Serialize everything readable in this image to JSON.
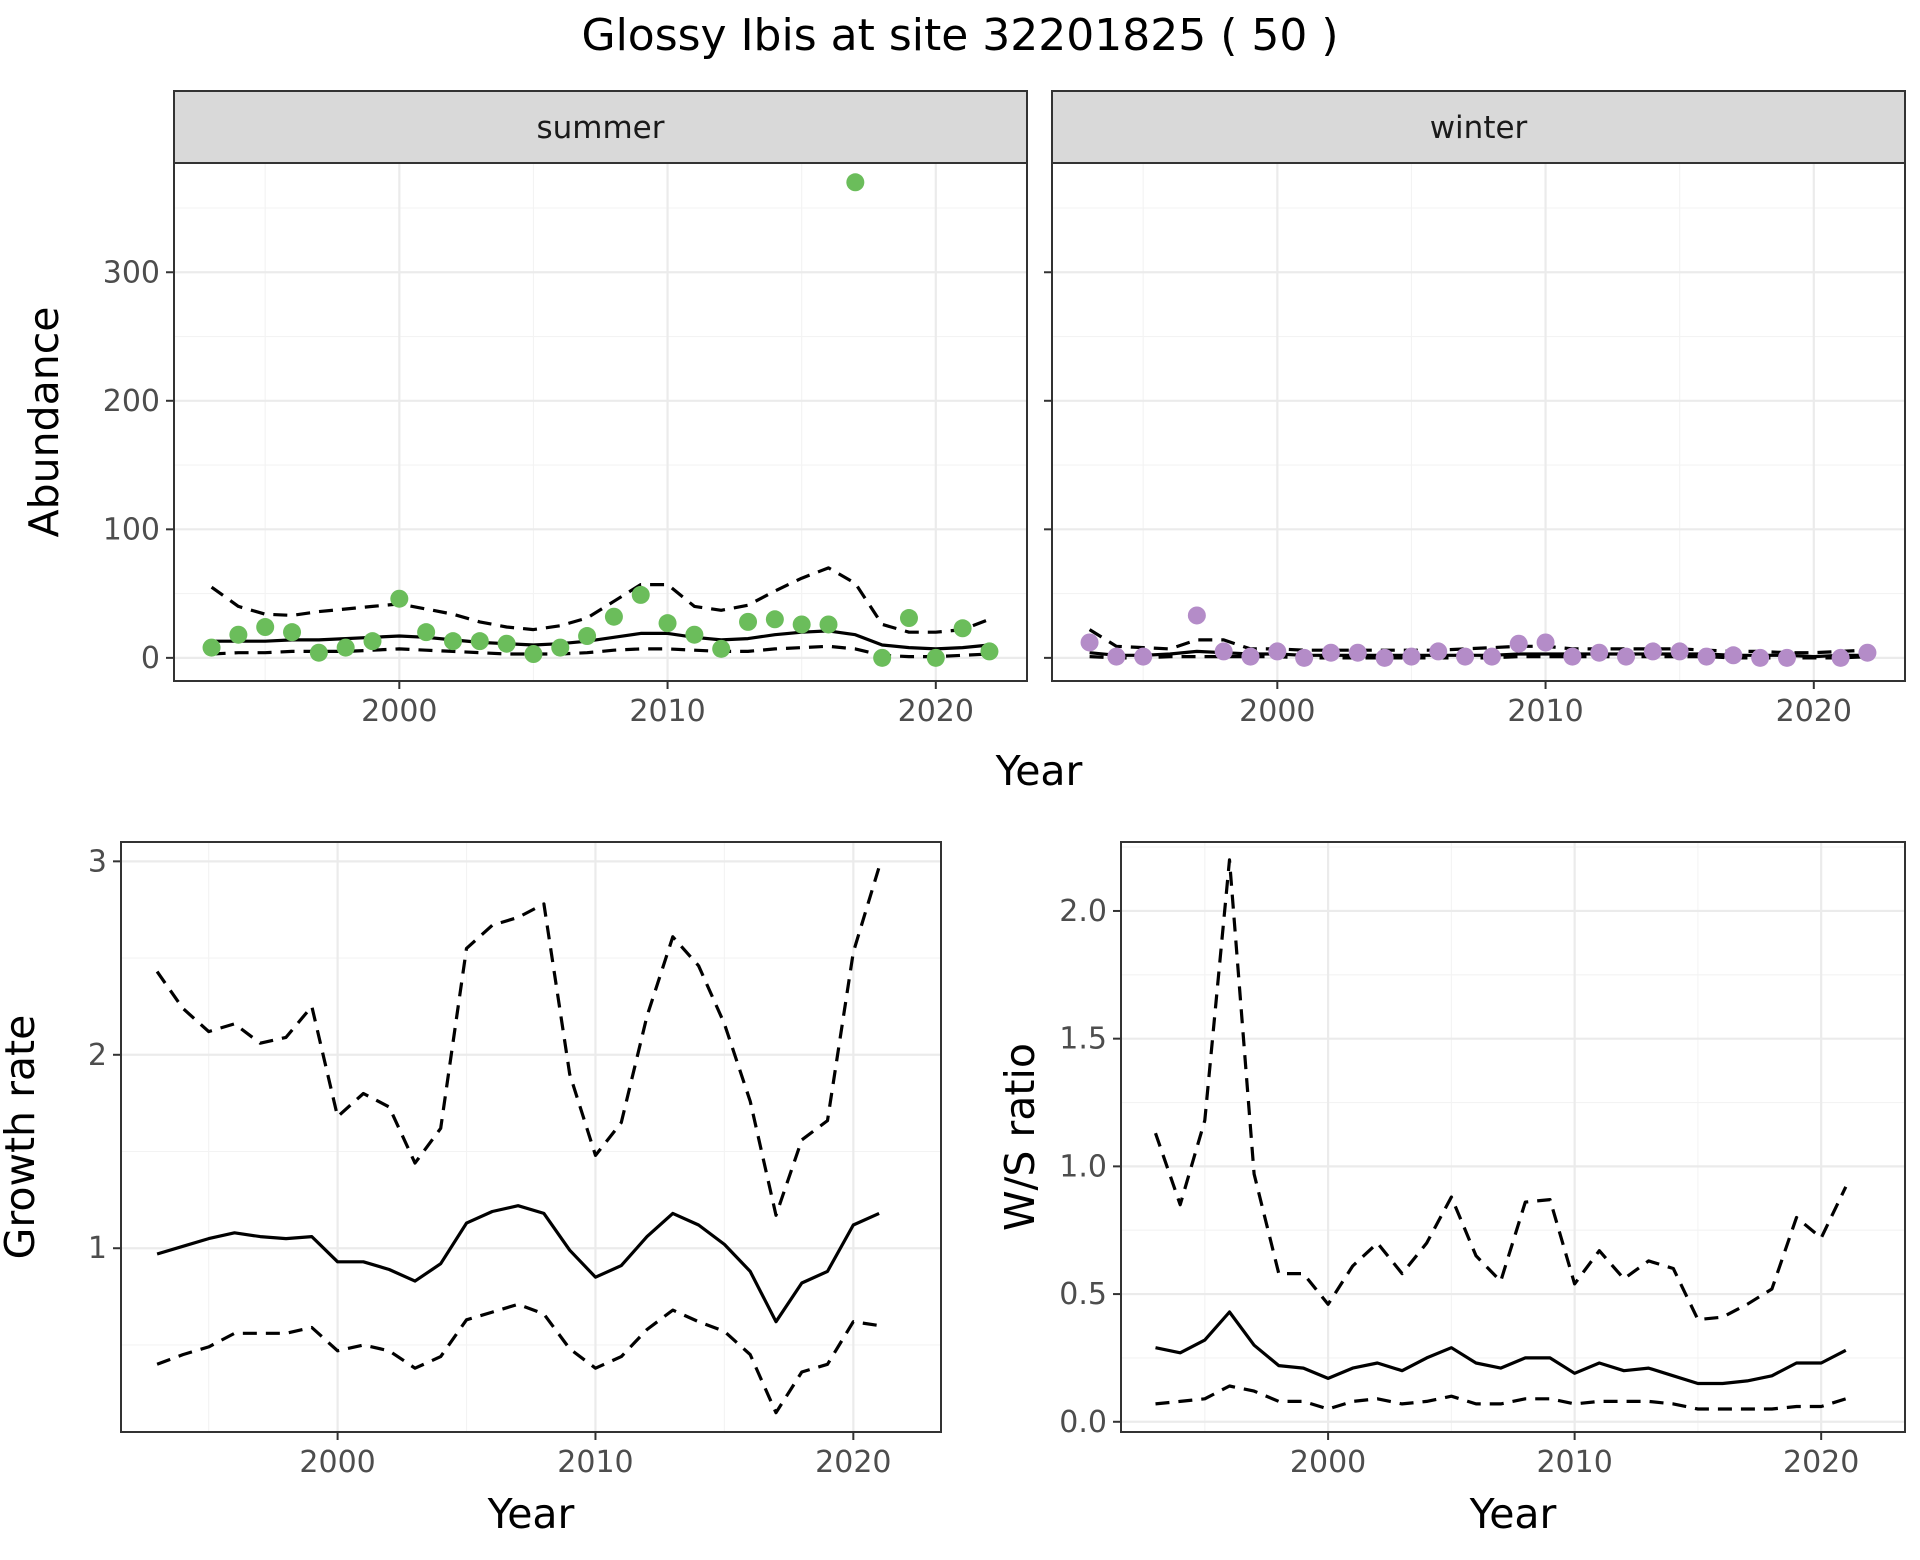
{
  "figure": {
    "title": "Glossy Ibis at site 32201825 ( 50 )"
  },
  "chart_data": [
    {
      "type": "scatter",
      "facet": "summer",
      "xlabel": "Year",
      "ylabel": "Abundance",
      "xlim": [
        1991.6,
        2023.4
      ],
      "ylim": [
        -18,
        385
      ],
      "x_ticks": [
        2000,
        2010,
        2020
      ],
      "y_ticks": [
        0,
        100,
        200,
        300
      ],
      "grid": true,
      "point_color": "#6bbd5b",
      "points": {
        "x": [
          1993,
          1994,
          1995,
          1996,
          1997,
          1998,
          1999,
          2000,
          2001,
          2002,
          2003,
          2004,
          2005,
          2006,
          2007,
          2008,
          2009,
          2010,
          2011,
          2012,
          2013,
          2014,
          2015,
          2016,
          2017,
          2018,
          2019,
          2020,
          2021,
          2022
        ],
        "y": [
          8,
          18,
          24,
          20,
          4,
          8,
          13,
          46,
          20,
          13,
          13,
          11,
          3,
          8,
          17,
          32,
          49,
          27,
          18,
          7,
          28,
          30,
          26,
          26,
          370,
          0,
          31,
          0,
          23,
          5
        ]
      },
      "fit": {
        "x": [
          1993,
          1994,
          1995,
          1996,
          1997,
          1998,
          1999,
          2000,
          2001,
          2002,
          2003,
          2004,
          2005,
          2006,
          2007,
          2008,
          2009,
          2010,
          2011,
          2012,
          2013,
          2014,
          2015,
          2016,
          2017,
          2018,
          2019,
          2020,
          2021,
          2022
        ],
        "y": [
          13,
          13,
          13,
          14,
          14,
          15,
          16,
          17,
          16,
          14,
          12,
          11,
          10,
          11,
          13,
          16,
          19,
          19,
          16,
          14,
          15,
          18,
          20,
          21,
          18,
          10,
          8,
          7,
          8,
          10
        ]
      },
      "lower": {
        "x": [
          1993,
          1994,
          1995,
          1996,
          1997,
          1998,
          1999,
          2000,
          2001,
          2002,
          2003,
          2004,
          2005,
          2006,
          2007,
          2008,
          2009,
          2010,
          2011,
          2012,
          2013,
          2014,
          2015,
          2016,
          2017,
          2018,
          2019,
          2020,
          2021,
          2022
        ],
        "y": [
          3,
          4,
          4,
          5,
          5,
          5,
          6,
          7,
          6,
          5,
          4,
          3,
          3,
          3,
          4,
          6,
          7,
          7,
          6,
          5,
          5,
          7,
          8,
          9,
          7,
          2,
          1,
          1,
          2,
          3
        ]
      },
      "upper": {
        "x": [
          1993,
          1994,
          1995,
          1996,
          1997,
          1998,
          1999,
          2000,
          2001,
          2002,
          2003,
          2004,
          2005,
          2006,
          2007,
          2008,
          2009,
          2010,
          2011,
          2012,
          2013,
          2014,
          2015,
          2016,
          2017,
          2018,
          2019,
          2020,
          2021,
          2022
        ],
        "y": [
          55,
          40,
          34,
          33,
          36,
          38,
          40,
          42,
          38,
          34,
          28,
          24,
          22,
          25,
          31,
          44,
          57,
          57,
          40,
          37,
          41,
          52,
          62,
          70,
          58,
          26,
          20,
          20,
          22,
          30
        ]
      }
    },
    {
      "type": "scatter",
      "facet": "winter",
      "xlabel": "Year",
      "ylabel": "Abundance",
      "xlim": [
        1991.6,
        2023.4
      ],
      "ylim": [
        -18,
        385
      ],
      "x_ticks": [
        2000,
        2010,
        2020
      ],
      "y_ticks": [
        0,
        100,
        200,
        300
      ],
      "grid": true,
      "point_color": "#b48cc8",
      "points": {
        "x": [
          1993,
          1994,
          1995,
          1996,
          1997,
          1998,
          1999,
          2000,
          2001,
          2002,
          2003,
          2004,
          2005,
          2006,
          2007,
          2008,
          2009,
          2010,
          2011,
          2012,
          2013,
          2014,
          2015,
          2016,
          2017,
          2018,
          2019,
          2020,
          2021,
          2022
        ],
        "y": [
          12,
          1,
          1,
          null,
          33,
          5,
          1,
          5,
          0,
          4,
          4,
          0,
          1,
          5,
          1,
          1,
          11,
          12,
          1,
          4,
          1,
          5,
          5,
          1,
          2,
          0,
          0,
          null,
          0,
          4
        ]
      },
      "fit": {
        "x": [
          1993,
          1994,
          1995,
          1996,
          1997,
          1998,
          1999,
          2000,
          2001,
          2002,
          2003,
          2004,
          2005,
          2006,
          2007,
          2008,
          2009,
          2010,
          2011,
          2012,
          2013,
          2014,
          2015,
          2016,
          2017,
          2018,
          2019,
          2020,
          2021,
          2022
        ],
        "y": [
          4,
          2,
          2,
          3,
          5,
          4,
          3,
          3,
          2,
          2,
          2,
          2,
          2,
          2,
          2,
          2,
          3,
          3,
          3,
          3,
          3,
          3,
          3,
          3,
          2,
          2,
          2,
          1,
          2,
          2
        ]
      },
      "lower": {
        "x": [
          1993,
          1994,
          1995,
          1996,
          1997,
          1998,
          1999,
          2000,
          2001,
          2002,
          2003,
          2004,
          2005,
          2006,
          2007,
          2008,
          2009,
          2010,
          2011,
          2012,
          2013,
          2014,
          2015,
          2016,
          2017,
          2018,
          2019,
          2020,
          2021,
          2022
        ],
        "y": [
          1,
          0,
          0,
          1,
          1,
          1,
          1,
          1,
          0,
          0,
          0,
          0,
          0,
          0,
          0,
          0,
          1,
          1,
          1,
          1,
          1,
          1,
          1,
          1,
          0,
          0,
          0,
          0,
          0,
          1
        ]
      },
      "upper": {
        "x": [
          1993,
          1994,
          1995,
          1996,
          1997,
          1998,
          1999,
          2000,
          2001,
          2002,
          2003,
          2004,
          2005,
          2006,
          2007,
          2008,
          2009,
          2010,
          2011,
          2012,
          2013,
          2014,
          2015,
          2016,
          2017,
          2018,
          2019,
          2020,
          2021,
          2022
        ],
        "y": [
          22,
          9,
          8,
          7,
          14,
          14,
          7,
          7,
          6,
          6,
          6,
          6,
          6,
          6,
          7,
          8,
          9,
          9,
          7,
          7,
          7,
          7,
          7,
          6,
          5,
          5,
          4,
          4,
          5,
          6
        ]
      }
    },
    {
      "type": "line",
      "xlabel": "Year",
      "ylabel": "Growth rate",
      "xlim": [
        1991.6,
        2023.4
      ],
      "ylim": [
        0.05,
        3.1
      ],
      "x_ticks": [
        2000,
        2010,
        2020
      ],
      "y_ticks": [
        1,
        2,
        3
      ],
      "grid": true,
      "fit": {
        "x": [
          1993,
          1994,
          1995,
          1996,
          1997,
          1998,
          1999,
          2000,
          2001,
          2002,
          2003,
          2004,
          2005,
          2006,
          2007,
          2008,
          2009,
          2010,
          2011,
          2012,
          2013,
          2014,
          2015,
          2016,
          2017,
          2018,
          2019,
          2020,
          2021
        ],
        "y": [
          0.97,
          1.01,
          1.05,
          1.08,
          1.06,
          1.05,
          1.06,
          0.93,
          0.93,
          0.89,
          0.83,
          0.92,
          1.13,
          1.19,
          1.22,
          1.18,
          0.99,
          0.85,
          0.91,
          1.06,
          1.18,
          1.12,
          1.02,
          0.88,
          0.62,
          0.82,
          0.88,
          1.12,
          1.18
        ]
      },
      "lower": {
        "x": [
          1993,
          1994,
          1995,
          1996,
          1997,
          1998,
          1999,
          2000,
          2001,
          2002,
          2003,
          2004,
          2005,
          2006,
          2007,
          2008,
          2009,
          2010,
          2011,
          2012,
          2013,
          2014,
          2015,
          2016,
          2017,
          2018,
          2019,
          2020,
          2021
        ],
        "y": [
          0.4,
          0.45,
          0.49,
          0.56,
          0.56,
          0.56,
          0.59,
          0.47,
          0.5,
          0.47,
          0.38,
          0.44,
          0.63,
          0.67,
          0.71,
          0.66,
          0.48,
          0.38,
          0.44,
          0.58,
          0.68,
          0.62,
          0.57,
          0.45,
          0.15,
          0.36,
          0.4,
          0.62,
          0.6
        ]
      },
      "upper": {
        "x": [
          1993,
          1994,
          1995,
          1996,
          1997,
          1998,
          1999,
          2000,
          2001,
          2002,
          2003,
          2004,
          2005,
          2006,
          2007,
          2008,
          2009,
          2010,
          2011,
          2012,
          2013,
          2014,
          2015,
          2016,
          2017,
          2018,
          2019,
          2020,
          2021
        ],
        "y": [
          2.43,
          2.24,
          2.12,
          2.16,
          2.06,
          2.09,
          2.25,
          1.68,
          1.8,
          1.73,
          1.44,
          1.62,
          2.55,
          2.67,
          2.71,
          2.78,
          1.9,
          1.48,
          1.65,
          2.2,
          2.61,
          2.46,
          2.16,
          1.76,
          1.17,
          1.56,
          1.66,
          2.53,
          2.97
        ]
      }
    },
    {
      "type": "line",
      "xlabel": "Year",
      "ylabel": "W/S ratio",
      "xlim": [
        1991.6,
        2023.4
      ],
      "ylim": [
        -0.04,
        2.27
      ],
      "x_ticks": [
        2000,
        2010,
        2020
      ],
      "y_ticks": [
        0.0,
        0.5,
        1.0,
        1.5,
        2.0
      ],
      "y_tick_labels": [
        "0.0",
        "0.5",
        "1.0",
        "1.5",
        "2.0"
      ],
      "grid": true,
      "fit": {
        "x": [
          1993,
          1994,
          1995,
          1996,
          1997,
          1998,
          1999,
          2000,
          2001,
          2002,
          2003,
          2004,
          2005,
          2006,
          2007,
          2008,
          2009,
          2010,
          2011,
          2012,
          2013,
          2014,
          2015,
          2016,
          2017,
          2018,
          2019,
          2020,
          2021
        ],
        "y": [
          0.29,
          0.27,
          0.32,
          0.43,
          0.3,
          0.22,
          0.21,
          0.17,
          0.21,
          0.23,
          0.2,
          0.25,
          0.29,
          0.23,
          0.21,
          0.25,
          0.25,
          0.19,
          0.23,
          0.2,
          0.21,
          0.18,
          0.15,
          0.15,
          0.16,
          0.18,
          0.23,
          0.23,
          0.28
        ]
      },
      "lower": {
        "x": [
          1993,
          1994,
          1995,
          1996,
          1997,
          1998,
          1999,
          2000,
          2001,
          2002,
          2003,
          2004,
          2005,
          2006,
          2007,
          2008,
          2009,
          2010,
          2011,
          2012,
          2013,
          2014,
          2015,
          2016,
          2017,
          2018,
          2019,
          2020,
          2021
        ],
        "y": [
          0.07,
          0.08,
          0.09,
          0.14,
          0.12,
          0.08,
          0.08,
          0.05,
          0.08,
          0.09,
          0.07,
          0.08,
          0.1,
          0.07,
          0.07,
          0.09,
          0.09,
          0.07,
          0.08,
          0.08,
          0.08,
          0.07,
          0.05,
          0.05,
          0.05,
          0.05,
          0.06,
          0.06,
          0.09
        ]
      },
      "upper": {
        "x": [
          1993,
          1994,
          1995,
          1996,
          1997,
          1998,
          1999,
          2000,
          2001,
          2002,
          2003,
          2004,
          2005,
          2006,
          2007,
          2008,
          2009,
          2010,
          2011,
          2012,
          2013,
          2014,
          2015,
          2016,
          2017,
          2018,
          2019,
          2020,
          2021
        ],
        "y": [
          1.13,
          0.85,
          1.18,
          2.2,
          0.97,
          0.58,
          0.58,
          0.46,
          0.61,
          0.7,
          0.58,
          0.7,
          0.88,
          0.65,
          0.55,
          0.86,
          0.87,
          0.54,
          0.67,
          0.56,
          0.63,
          0.6,
          0.4,
          0.41,
          0.46,
          0.52,
          0.8,
          0.72,
          0.92
        ]
      }
    }
  ]
}
